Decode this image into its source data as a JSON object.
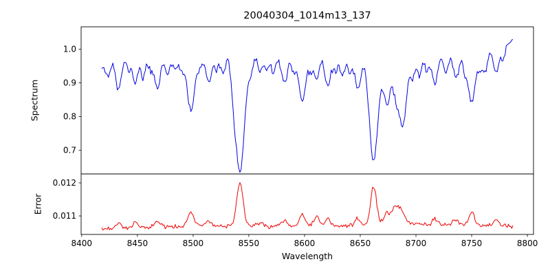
{
  "title": "20040304_1014m13_137",
  "axes": {
    "xlabel": "Wavelength",
    "xlim": [
      8399.5,
      8805.5
    ],
    "xticks": [
      {
        "v": 8400,
        "label": "8400"
      },
      {
        "v": 8450,
        "label": "8450"
      },
      {
        "v": 8500,
        "label": "8500"
      },
      {
        "v": 8550,
        "label": "8550"
      },
      {
        "v": 8600,
        "label": "8600"
      },
      {
        "v": 8650,
        "label": "8650"
      },
      {
        "v": 8700,
        "label": "8700"
      },
      {
        "v": 8750,
        "label": "8750"
      },
      {
        "v": 8800,
        "label": "8800"
      }
    ]
  },
  "chart_data": [
    {
      "type": "line",
      "name": "spectrum",
      "ylabel": "Spectrum",
      "color": "#0000e0",
      "line_width": 1.0,
      "ylim": [
        0.63,
        1.066
      ],
      "yticks": [
        {
          "v": 0.7,
          "label": "0.7"
        },
        {
          "v": 0.8,
          "label": "0.8"
        },
        {
          "v": 0.9,
          "label": "0.9"
        },
        {
          "v": 1.0,
          "label": "1.0"
        }
      ],
      "x_range": [
        8418,
        8787
      ],
      "sample_step": 1.0,
      "noise_sigma": 0.0045,
      "seed": 11,
      "base": {
        "x": [
          8418,
          8428,
          8445,
          8470,
          8495,
          8520,
          8545,
          8570,
          8600,
          8630,
          8655,
          8685,
          8710,
          8740,
          8765,
          8780,
          8787
        ],
        "y": [
          0.948,
          0.975,
          0.98,
          0.975,
          0.98,
          0.985,
          0.985,
          0.975,
          0.975,
          0.975,
          0.97,
          0.965,
          0.98,
          0.99,
          0.99,
          1.01,
          1.03
        ]
      },
      "features": [
        [
          8424,
          -0.045,
          2
        ],
        [
          8433,
          -0.1,
          2.5
        ],
        [
          8442,
          -0.04,
          2
        ],
        [
          8448,
          -0.08,
          2.2
        ],
        [
          8455,
          -0.065,
          2
        ],
        [
          8462,
          -0.04,
          2
        ],
        [
          8468,
          -0.09,
          2.5
        ],
        [
          8477,
          -0.05,
          2
        ],
        [
          8484,
          -0.04,
          2
        ],
        [
          8490,
          -0.045,
          2
        ],
        [
          8498,
          -0.165,
          3.2
        ],
        [
          8506,
          -0.04,
          2
        ],
        [
          8514,
          -0.085,
          2.5
        ],
        [
          8521,
          -0.04,
          2
        ],
        [
          8527,
          -0.055,
          2
        ],
        [
          8536,
          -0.05,
          2
        ],
        [
          8542,
          -0.345,
          4.2
        ],
        [
          8552,
          -0.04,
          2
        ],
        [
          8560,
          -0.045,
          2
        ],
        [
          8566,
          -0.04,
          2
        ],
        [
          8572,
          -0.045,
          2
        ],
        [
          8582,
          -0.075,
          2.5
        ],
        [
          8590,
          -0.04,
          2
        ],
        [
          8598,
          -0.135,
          3
        ],
        [
          8606,
          -0.045,
          2
        ],
        [
          8611,
          -0.06,
          2
        ],
        [
          8621,
          -0.085,
          2.5
        ],
        [
          8628,
          -0.04,
          2
        ],
        [
          8634,
          -0.05,
          2
        ],
        [
          8641,
          -0.045,
          2
        ],
        [
          8648,
          -0.09,
          2.5
        ],
        [
          8662,
          -0.3,
          3.8
        ],
        [
          8674,
          -0.13,
          3
        ],
        [
          8682,
          -0.08,
          2.5
        ],
        [
          8688,
          -0.19,
          3.5
        ],
        [
          8697,
          -0.05,
          2
        ],
        [
          8703,
          -0.055,
          2
        ],
        [
          8710,
          -0.04,
          2
        ],
        [
          8717,
          -0.085,
          2.5
        ],
        [
          8727,
          -0.055,
          2
        ],
        [
          8736,
          -0.075,
          2.5
        ],
        [
          8744,
          -0.05,
          2
        ],
        [
          8750,
          -0.145,
          3
        ],
        [
          8757,
          -0.05,
          2
        ],
        [
          8762,
          -0.055,
          2
        ],
        [
          8772,
          -0.065,
          2.2
        ],
        [
          8778,
          -0.04,
          2
        ]
      ]
    },
    {
      "type": "line",
      "name": "error",
      "ylabel": "Error",
      "color": "#ee0000",
      "line_width": 1.0,
      "ylim": [
        0.01044,
        0.01227
      ],
      "yticks": [
        {
          "v": 0.011,
          "label": "0.011"
        },
        {
          "v": 0.012,
          "label": "0.012"
        }
      ],
      "x_range": [
        8418,
        8787
      ],
      "sample_step": 1.0,
      "noise_sigma": 3.3e-05,
      "seed": 23,
      "base": {
        "x": [
          8418,
          8450,
          8500,
          8550,
          8600,
          8650,
          8700,
          8750,
          8787
        ],
        "y": [
          0.01058,
          0.01065,
          0.01068,
          0.0107,
          0.0107,
          0.01068,
          0.01075,
          0.0107,
          0.01068
        ]
      },
      "features": [
        [
          8433,
          0.00018,
          2.5
        ],
        [
          8448,
          0.00015,
          2
        ],
        [
          8468,
          0.00018,
          2.5
        ],
        [
          8498,
          0.00042,
          2.8
        ],
        [
          8514,
          0.00018,
          2.5
        ],
        [
          8542,
          0.00135,
          2.8
        ],
        [
          8560,
          0.0001,
          2
        ],
        [
          8582,
          0.00015,
          2.5
        ],
        [
          8598,
          0.00035,
          2.8
        ],
        [
          8611,
          0.0003,
          2.5
        ],
        [
          8621,
          0.00022,
          2.5
        ],
        [
          8648,
          0.0002,
          2.5
        ],
        [
          8662,
          0.00118,
          2.8
        ],
        [
          8674,
          0.0004,
          2.8
        ],
        [
          8682,
          0.00055,
          3
        ],
        [
          8688,
          0.00035,
          2.5
        ],
        [
          8717,
          0.0002,
          2.5
        ],
        [
          8736,
          0.00018,
          2.5
        ],
        [
          8750,
          0.0004,
          2.5
        ],
        [
          8772,
          0.0002,
          2.2
        ]
      ]
    }
  ]
}
